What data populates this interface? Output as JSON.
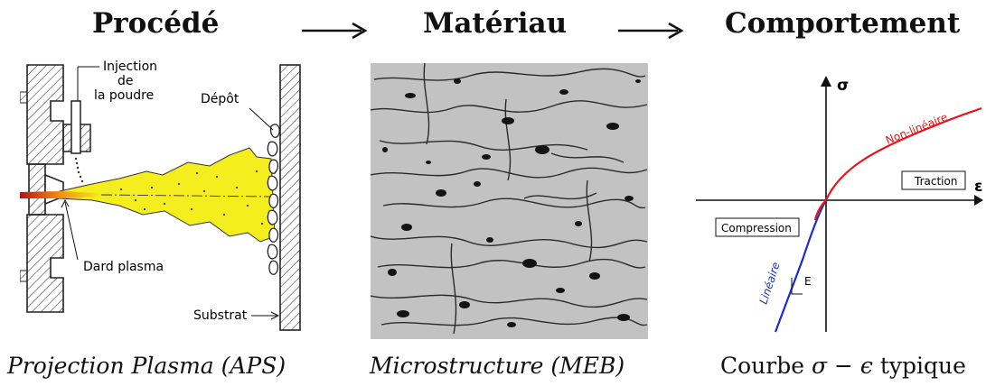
{
  "headings": {
    "process": "Procédé",
    "material": "Matériau",
    "behavior": "Comportement"
  },
  "captions": {
    "process": "Projection Plasma (APS)",
    "material": "Microstructure (MEB)",
    "behavior_prefix": "Courbe ",
    "behavior_formula": "σ − ϵ",
    "behavior_suffix": " typique"
  },
  "process_diagram": {
    "injection_line1": "Injection",
    "injection_line2": "de",
    "injection_line3": "la poudre",
    "deposit": "Dépôt",
    "plasma_jet": "Dard plasma",
    "substrate": "Substrat"
  },
  "curve": {
    "y_axis": "σ",
    "x_axis": "ε",
    "traction": "Traction",
    "compression": "Compression",
    "nonlinear": "Non-linéaire",
    "linear": "Linéaire",
    "modulus": "E"
  },
  "colors": {
    "plasma": "#f5ee1e",
    "nonlinear_curve": "#e8141b",
    "linear_curve": "#1b2bd0",
    "sem_background": "#c2c2c2"
  }
}
